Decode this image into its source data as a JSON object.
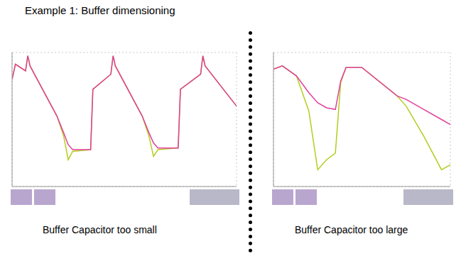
{
  "header": {
    "title": "Example 1: Buffer dimensioning"
  },
  "chart_data": [
    {
      "type": "line",
      "title": "Buffer Capacitor too small",
      "x": [
        0,
        0.15,
        0.6,
        0.7,
        0.8,
        2.0,
        2.3,
        2.5,
        2.7,
        3.5,
        3.6,
        4.4,
        4.5,
        4.6,
        5.8,
        6.1,
        6.3,
        6.5,
        7.4,
        7.5,
        8.4,
        8.5,
        8.6,
        10
      ],
      "series": [
        {
          "color": "#b5cc1e",
          "values": [
            6.4,
            7.3,
            6.9,
            7.8,
            7.2,
            4.2,
            3.0,
            1.6,
            2.1,
            2.2,
            5.8,
            6.7,
            7.8,
            7.2,
            4.2,
            3.0,
            1.8,
            2.2,
            2.3,
            5.8,
            6.7,
            7.8,
            7.2,
            4.8
          ]
        },
        {
          "color": "#e0409a",
          "values": [
            6.4,
            7.3,
            6.9,
            7.8,
            7.2,
            4.2,
            3.2,
            2.5,
            2.2,
            2.2,
            5.8,
            6.7,
            7.8,
            7.2,
            4.2,
            3.2,
            2.6,
            2.3,
            2.3,
            5.8,
            6.7,
            7.8,
            7.2,
            4.8
          ]
        }
      ],
      "xlim": [
        0,
        10
      ],
      "ylim": [
        0,
        8
      ],
      "xticks": [
        0,
        1,
        2,
        3,
        4,
        5,
        6,
        7,
        8,
        9,
        10
      ],
      "yticks": [
        0,
        1,
        2,
        3,
        4,
        5,
        6,
        7,
        8
      ],
      "grid": true,
      "tick_labels": false
    },
    {
      "type": "line",
      "title": "Buffer Capacitor too large",
      "x": [
        0,
        0.5,
        1.3,
        2.0,
        2.5,
        3.0,
        3.5,
        3.8,
        4.1,
        5.0,
        7.0,
        7.5,
        8.5,
        9.5,
        10
      ],
      "series": [
        {
          "color": "#b5cc1e",
          "values": [
            7.0,
            7.2,
            6.6,
            4.5,
            1.0,
            1.6,
            2.0,
            6.2,
            7.1,
            7.1,
            5.4,
            4.8,
            3.0,
            1.0,
            1.3
          ]
        },
        {
          "color": "#e0409a",
          "values": [
            7.0,
            7.2,
            6.6,
            5.6,
            5.0,
            4.7,
            4.6,
            6.3,
            7.1,
            7.1,
            5.4,
            5.2,
            4.6,
            4.0,
            3.7
          ]
        }
      ],
      "xlim": [
        0,
        10
      ],
      "ylim": [
        0,
        8
      ],
      "xticks": [
        0,
        1,
        2,
        3,
        4,
        5,
        6,
        7,
        8,
        9,
        10
      ],
      "yticks": [
        0,
        1,
        2,
        3,
        4,
        5,
        6,
        7,
        8
      ],
      "grid": true,
      "tick_labels": false
    }
  ]
}
